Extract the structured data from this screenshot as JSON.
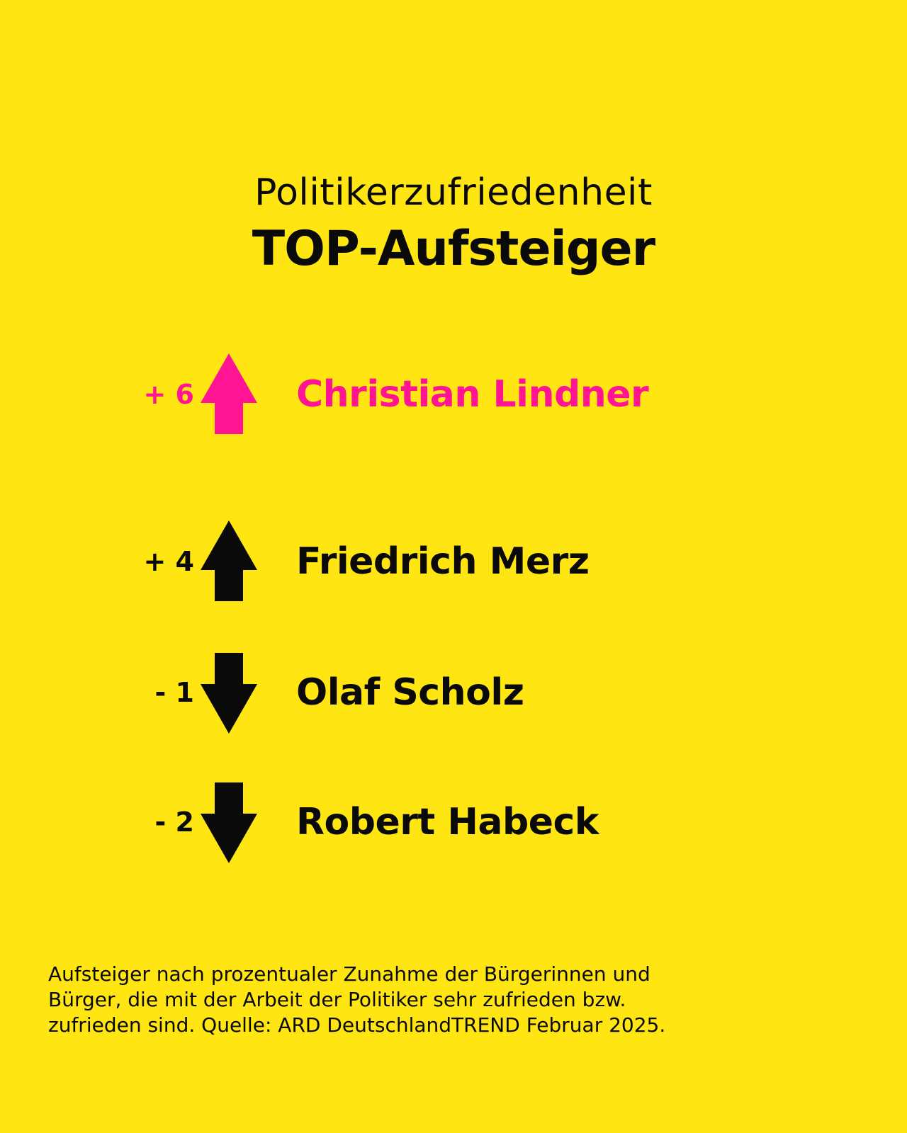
{
  "header": {
    "subtitle": "Politikerzufriedenheit",
    "title": "TOP-Aufsteiger"
  },
  "colors": {
    "background": "#FFE512",
    "highlight": "#FF1493",
    "text": "#0a0a0a"
  },
  "ranking": [
    {
      "delta": "+ 6",
      "direction": "up",
      "icon": "arrow-up-icon",
      "name": "Christian Lindner",
      "highlight": true
    },
    {
      "delta": "+ 4",
      "direction": "up",
      "icon": "arrow-up-icon",
      "name": "Friedrich Merz",
      "highlight": false
    },
    {
      "delta": "- 1",
      "direction": "down",
      "icon": "arrow-down-icon",
      "name": "Olaf Scholz",
      "highlight": false
    },
    {
      "delta": "- 2",
      "direction": "down",
      "icon": "arrow-down-icon",
      "name": "Robert Habeck",
      "highlight": false
    }
  ],
  "footnote": {
    "line1": "Aufsteiger nach prozentualer Zunahme der Bürgerinnen und",
    "line2": "Bürger, die mit der Arbeit der Politiker sehr zufrieden bzw.",
    "line3": "zufrieden sind. Quelle: ARD DeutschlandTREND Februar 2025."
  }
}
